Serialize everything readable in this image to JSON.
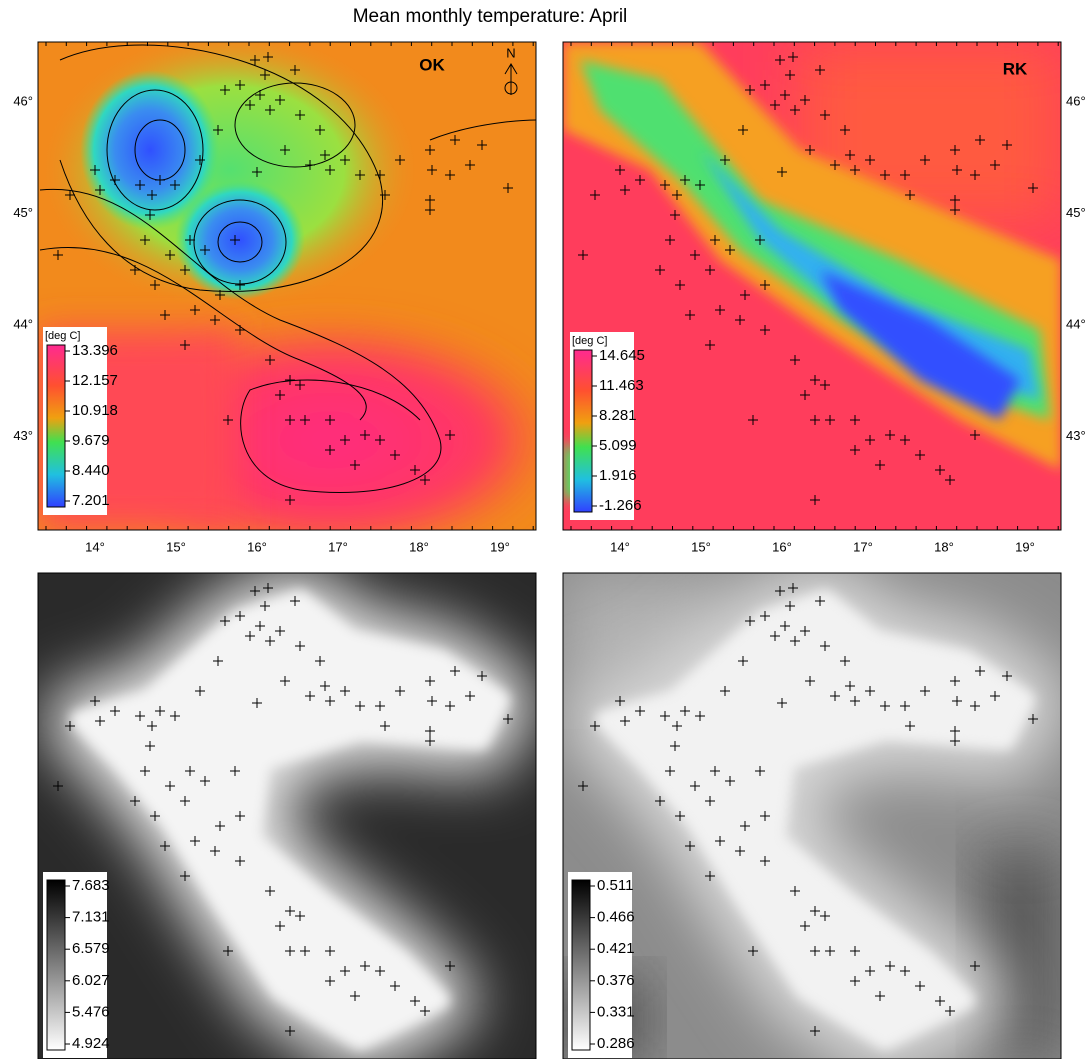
{
  "title": "Mean monthly temperature: April",
  "x_axis": {
    "ticks": [
      "14°",
      "15°",
      "16°",
      "17°",
      "18°",
      "19°"
    ]
  },
  "y_axis": {
    "ticks": [
      "46°",
      "45°",
      "44°",
      "43°"
    ]
  },
  "panels": [
    {
      "label": "OK",
      "north": "N",
      "legend": {
        "unit": "[deg C]",
        "labels": [
          "13.396",
          "12.157",
          "10.918",
          "9.679",
          "8.440",
          "7.201"
        ]
      }
    },
    {
      "label": "RK",
      "legend": {
        "unit": "[deg C]",
        "labels": [
          "14.645",
          "11.463",
          "8.281",
          "5.099",
          "1.916",
          "-1.266"
        ]
      }
    },
    {
      "legend": {
        "labels": [
          "7.683",
          "7.131",
          "6.579",
          "6.027",
          "5.476",
          "4.924"
        ]
      }
    },
    {
      "legend": {
        "labels": [
          "0.511",
          "0.466",
          "0.421",
          "0.376",
          "0.331",
          "0.286"
        ]
      }
    }
  ]
}
